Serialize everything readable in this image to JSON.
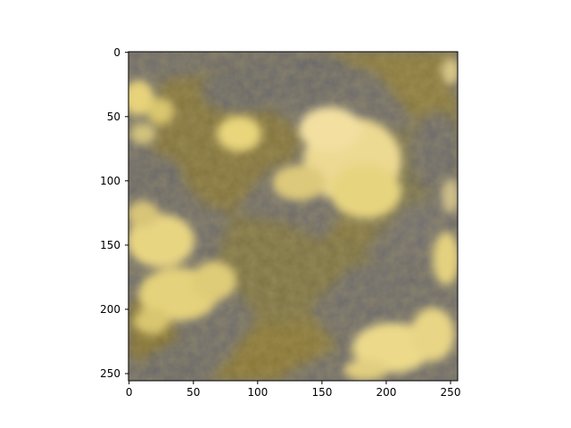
{
  "image": {
    "description_free_axes": true,
    "x_ticks": [
      "0",
      "50",
      "100",
      "150",
      "200",
      "250"
    ],
    "y_ticks": [
      "0",
      "50",
      "100",
      "150",
      "200",
      "250"
    ],
    "x_tick_values": [
      0,
      50,
      100,
      150,
      200,
      250
    ],
    "y_tick_values": [
      0,
      50,
      100,
      150,
      200,
      250
    ],
    "extent": [
      0,
      256
    ],
    "colors": {
      "shadow_gray": "#6f6c6a",
      "cloud_yellow": "#f0de8c",
      "terrain_olive": "#8a7a3e",
      "axis": "#000000"
    }
  }
}
